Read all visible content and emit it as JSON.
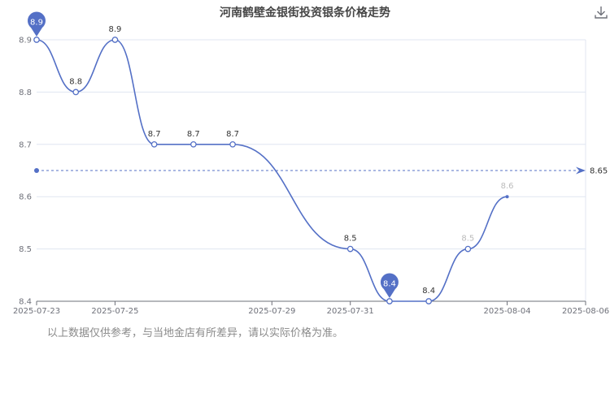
{
  "chart_data": {
    "type": "line",
    "title": "河南鹤壁金银街投资银条价格走势",
    "x": [
      "2025-07-23",
      "2025-07-24",
      "2025-07-25",
      "2025-07-26",
      "2025-07-27",
      "2025-07-28",
      "2025-07-29",
      "2025-07-30",
      "2025-07-31",
      "2025-08-01",
      "2025-08-02",
      "2025-08-03",
      "2025-08-04",
      "2025-08-05",
      "2025-08-06"
    ],
    "x_tick_labels": [
      "2025-07-23",
      "2025-07-25",
      "2025-07-29",
      "2025-07-31",
      "2025-08-04",
      "2025-08-06"
    ],
    "y_tick_labels": [
      "8.4",
      "8.5",
      "8.6",
      "8.7",
      "8.8",
      "8.9"
    ],
    "ylim": [
      8.4,
      8.9
    ],
    "series": [
      {
        "points": [
          {
            "x": "2025-07-23",
            "y": 8.9,
            "label": null
          },
          {
            "x": "2025-07-24",
            "y": 8.8,
            "label": "8.8"
          },
          {
            "x": "2025-07-25",
            "y": 8.9,
            "label": "8.9"
          },
          {
            "x": "2025-07-26",
            "y": 8.7,
            "label": "8.7"
          },
          {
            "x": "2025-07-27",
            "y": 8.7,
            "label": "8.7"
          },
          {
            "x": "2025-07-28",
            "y": 8.7,
            "label": "8.7"
          },
          {
            "x": "2025-07-31",
            "y": 8.5,
            "label": "8.5"
          },
          {
            "x": "2025-08-01",
            "y": 8.4,
            "label": null
          },
          {
            "x": "2025-08-02",
            "y": 8.4,
            "label": "8.4"
          },
          {
            "x": "2025-08-03",
            "y": 8.5,
            "label": "8.5",
            "dim": true
          },
          {
            "x": "2025-08-04",
            "y": 8.6,
            "label": "8.6",
            "dim": true
          }
        ]
      }
    ],
    "mark_points": [
      {
        "name": "max",
        "value": "8.9",
        "x": "2025-07-23",
        "y": 8.9
      },
      {
        "name": "min",
        "value": "8.4",
        "x": "2025-08-01",
        "y": 8.4
      }
    ],
    "mark_line": {
      "value": 8.65,
      "label": "8.65"
    },
    "grid": true,
    "smooth": true,
    "colors": {
      "line": "#5470c6",
      "grid": "#e0e6f1",
      "axis": "#6e7079",
      "text": "#333333",
      "dim": "#bbbbbb"
    }
  },
  "disclaimer": "以上数据仅供参考，与当地金店有所差异，请以实际价格为准。",
  "toolbar": {
    "download_icon": "download-icon"
  }
}
